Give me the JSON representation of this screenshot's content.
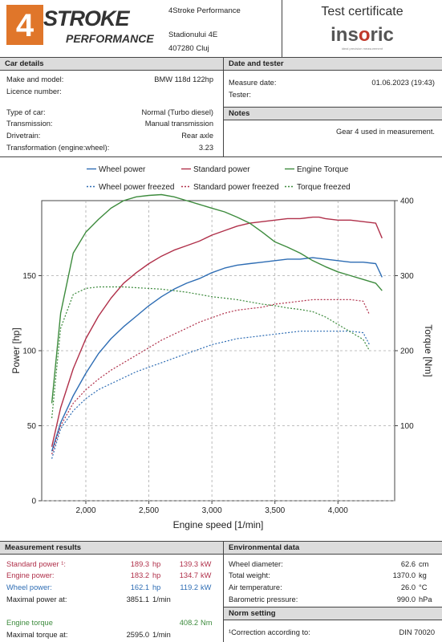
{
  "header": {
    "logo_number": "4",
    "logo_word": "STROKE",
    "logo_sub": "PERFORMANCE",
    "company": "4Stroke Performance",
    "address_line1": "Stadionului 4E",
    "address_line2": "407280 Cluj",
    "certificate_title": "Test certificate",
    "insoric_pre": "ins",
    "insoric_o": "o",
    "insoric_post": "ric",
    "insoric_tagline": "ideal precision measurement"
  },
  "car_details": {
    "heading": "Car details",
    "rows": [
      {
        "label": "Make and model:",
        "value": "BMW 118d 122hp"
      },
      {
        "label": "Licence number:",
        "value": ""
      },
      {
        "label": "Type of car:",
        "value": "Normal (Turbo diesel)"
      },
      {
        "label": "Transmission:",
        "value": "Manual transmission"
      },
      {
        "label": "Drivetrain:",
        "value": "Rear axle"
      },
      {
        "label": "Transformation (engine:wheel):",
        "value": "3.23"
      }
    ]
  },
  "date_tester": {
    "heading": "Date and tester",
    "measure_label": "Measure date:",
    "measure_value": "01.06.2023 (19:43)",
    "tester_label": "Tester:",
    "tester_value": ""
  },
  "notes": {
    "heading": "Notes",
    "text": "Gear 4 used in measurement."
  },
  "chart_data": {
    "type": "line",
    "xlabel": "Engine speed [1/min]",
    "ylabel": "Power [hp]",
    "y2label": "Torque [Nm]",
    "xlim": [
      1650,
      4450
    ],
    "ylim": [
      0,
      200
    ],
    "y2lim": [
      0,
      400
    ],
    "x_ticks": [
      "2,000",
      "2,500",
      "3,000",
      "3,500",
      "4,000"
    ],
    "x_tick_values": [
      2000,
      2500,
      3000,
      3500,
      4000
    ],
    "y_ticks": [
      "0",
      "50",
      "100",
      "150"
    ],
    "y_tick_values": [
      0,
      50,
      100,
      150
    ],
    "y2_ticks": [
      "100",
      "200",
      "300",
      "400"
    ],
    "y2_tick_values": [
      100,
      200,
      300,
      400
    ],
    "grid": true,
    "legend_position": "top",
    "series": [
      {
        "name": "Wheel power",
        "axis": "left",
        "color": "#2e6db4",
        "dashed": false,
        "x": [
          1730,
          1800,
          1900,
          2000,
          2100,
          2200,
          2300,
          2400,
          2500,
          2600,
          2700,
          2800,
          2900,
          3000,
          3100,
          3200,
          3300,
          3400,
          3500,
          3600,
          3700,
          3800,
          3900,
          4000,
          4100,
          4200,
          4300,
          4350
        ],
        "y": [
          33,
          52,
          70,
          85,
          98,
          108,
          116,
          123,
          130,
          136,
          141,
          145,
          148,
          152,
          155,
          157,
          158,
          159,
          160,
          161,
          161,
          162,
          161,
          160,
          159,
          159,
          158,
          149
        ]
      },
      {
        "name": "Standard power",
        "axis": "left",
        "color": "#b0304a",
        "dashed": false,
        "x": [
          1730,
          1800,
          1900,
          2000,
          2100,
          2200,
          2300,
          2400,
          2500,
          2600,
          2700,
          2800,
          2900,
          3000,
          3100,
          3200,
          3300,
          3400,
          3500,
          3600,
          3700,
          3800,
          3850,
          3900,
          4000,
          4100,
          4200,
          4300,
          4350
        ],
        "y": [
          36,
          62,
          88,
          108,
          123,
          135,
          145,
          152,
          158,
          163,
          167,
          170,
          173,
          177,
          180,
          183,
          185,
          186,
          187,
          188,
          188,
          189,
          189,
          188,
          187,
          187,
          186,
          185,
          175
        ]
      },
      {
        "name": "Engine Torque",
        "axis": "right",
        "color": "#3d8b3d",
        "dashed": false,
        "x": [
          1730,
          1800,
          1900,
          2000,
          2100,
          2200,
          2300,
          2400,
          2500,
          2600,
          2700,
          2800,
          2900,
          3000,
          3100,
          3200,
          3300,
          3400,
          3500,
          3600,
          3700,
          3800,
          3900,
          4000,
          4100,
          4200,
          4300,
          4350
        ],
        "y": [
          130,
          250,
          330,
          358,
          375,
          390,
          400,
          405,
          407,
          408,
          405,
          400,
          395,
          390,
          385,
          378,
          370,
          358,
          345,
          338,
          330,
          320,
          312,
          305,
          300,
          295,
          290,
          280
        ]
      },
      {
        "name": "Wheel power freezed",
        "axis": "left",
        "color": "#2e6db4",
        "dashed": true,
        "x": [
          1730,
          1800,
          1900,
          2000,
          2100,
          2200,
          2300,
          2400,
          2500,
          2600,
          2700,
          2800,
          2900,
          3000,
          3100,
          3200,
          3300,
          3400,
          3500,
          3600,
          3700,
          3800,
          3900,
          4000,
          4100,
          4200,
          4250
        ],
        "y": [
          28,
          48,
          60,
          68,
          74,
          78,
          82,
          86,
          89,
          92,
          95,
          98,
          101,
          104,
          106,
          108,
          109,
          110,
          111,
          112,
          113,
          113,
          113,
          113,
          113,
          112,
          104
        ]
      },
      {
        "name": "Standard power freezed",
        "axis": "left",
        "color": "#b0304a",
        "dashed": true,
        "x": [
          1730,
          1800,
          1900,
          2000,
          2100,
          2200,
          2300,
          2400,
          2500,
          2600,
          2700,
          2800,
          2900,
          3000,
          3100,
          3200,
          3300,
          3400,
          3500,
          3600,
          3700,
          3800,
          3900,
          4000,
          4100,
          4200,
          4250
        ],
        "y": [
          31,
          50,
          65,
          74,
          81,
          87,
          92,
          97,
          102,
          107,
          111,
          115,
          119,
          122,
          125,
          127,
          128,
          129,
          131,
          132,
          133,
          134,
          134,
          134,
          134,
          133,
          124
        ]
      },
      {
        "name": "Torque freezed",
        "axis": "right",
        "color": "#3d8b3d",
        "dashed": true,
        "x": [
          1730,
          1800,
          1900,
          2000,
          2100,
          2200,
          2300,
          2400,
          2500,
          2600,
          2700,
          2800,
          2900,
          3000,
          3100,
          3200,
          3300,
          3400,
          3500,
          3600,
          3700,
          3800,
          3900,
          4000,
          4100,
          4200,
          4250
        ],
        "y": [
          110,
          230,
          275,
          283,
          285,
          285,
          285,
          284,
          283,
          282,
          280,
          278,
          275,
          272,
          270,
          268,
          265,
          262,
          260,
          257,
          255,
          252,
          245,
          235,
          225,
          215,
          200
        ]
      }
    ]
  },
  "results": {
    "heading": "Measurement results",
    "rows": [
      {
        "label": "Standard power ¹:",
        "v1": "189.3",
        "u1": "hp",
        "v2": "139.3",
        "u2": "kW",
        "color": "#b0304a"
      },
      {
        "label": "Engine power:",
        "v1": "183.2",
        "u1": "hp",
        "v2": "134.7",
        "u2": "kW",
        "color": "#b0304a"
      },
      {
        "label": "Wheel power:",
        "v1": "162.1",
        "u1": "hp",
        "v2": "119.2",
        "u2": "kW",
        "color": "#2e6db4"
      },
      {
        "label": "Maximal power at:",
        "v1": "3851.1",
        "u1": "1/min",
        "v2": "",
        "u2": "",
        "color": "#222"
      },
      {
        "label": "Engine torque",
        "v1": "",
        "u1": "",
        "v2": "408.2",
        "u2": "Nm",
        "color": "#3d8b3d"
      },
      {
        "label": "Maximal torque at:",
        "v1": "2595.0",
        "u1": "1/min",
        "v2": "",
        "u2": "",
        "color": "#222"
      }
    ]
  },
  "environment": {
    "heading": "Environmental data",
    "rows": [
      {
        "label": "Wheel diameter:",
        "value": "62.6",
        "unit": "cm"
      },
      {
        "label": "Total weight:",
        "value": "1370.0",
        "unit": "kg"
      },
      {
        "label": "Air temperature:",
        "value": "26.0",
        "unit": "°C"
      },
      {
        "label": "Barometric pressure:",
        "value": "990.0",
        "unit": "hPa"
      }
    ]
  },
  "norm": {
    "heading": "Norm setting",
    "label": "¹Correction according to:",
    "value": "DIN 70020"
  }
}
